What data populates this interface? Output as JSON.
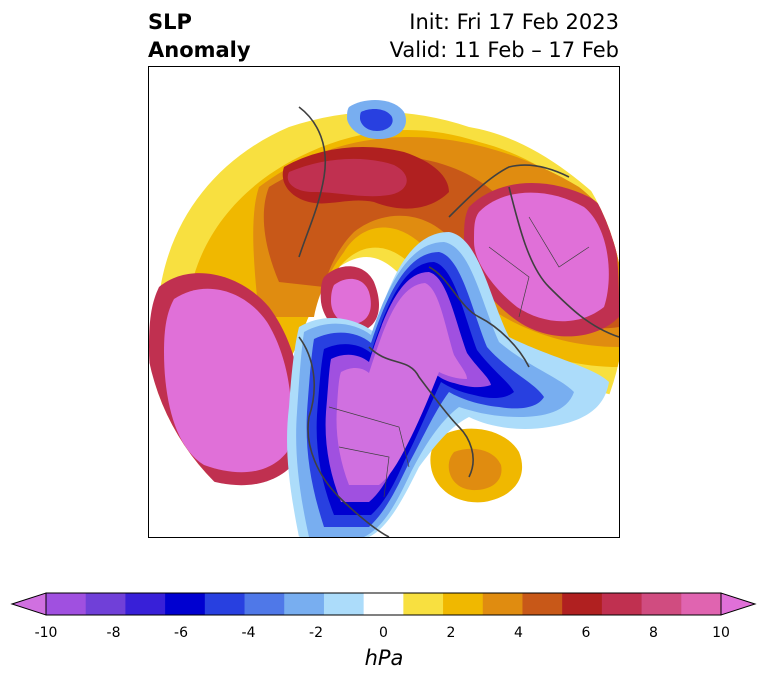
{
  "title": {
    "variable_line1": "SLP",
    "variable_line2": "Anomaly",
    "init": "Init: Fri 17 Feb 2023",
    "valid": "Valid: 11 Feb – 17 Feb"
  },
  "colorbar": {
    "units": "hPa",
    "ticks": [
      "-10",
      "-8",
      "-6",
      "-4",
      "-2",
      "0",
      "2",
      "4",
      "6",
      "8",
      "10"
    ],
    "colors": [
      "#d070e0",
      "#a050e0",
      "#7040d8",
      "#3820d8",
      "#0000d0",
      "#2840e0",
      "#4f78e8",
      "#78aef0",
      "#acdcfa",
      "#ffffff",
      "#f8e040",
      "#f0b800",
      "#e08c10",
      "#c85818",
      "#b02020",
      "#c03050",
      "#d04c80",
      "#e064b0",
      "#e070d8"
    ]
  },
  "map": {
    "projection": "polar-stereographic",
    "region": "Northern Hemisphere"
  }
}
